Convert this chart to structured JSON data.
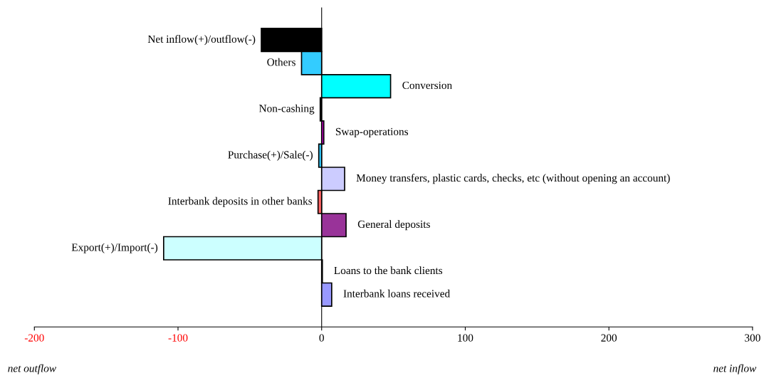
{
  "chart_data": {
    "type": "bar",
    "orientation": "horizontal",
    "categories": [
      "Net inflow(+)/outflow(-)",
      "Others",
      "Conversion",
      "Non-cashing",
      "Swap-operations",
      "Purchase(+)/Sale(-)",
      "Money transfers, plastic cards, checks, etc (without opening an account)",
      "Interbank deposits in other banks",
      "General deposits",
      "Export(+)/Import(-)",
      "Loans to the bank clients",
      "Interbank loans received"
    ],
    "values": [
      -42,
      -14,
      48,
      -1,
      1.5,
      -2,
      16,
      -2.5,
      17,
      -110,
      0.5,
      7
    ],
    "colors": [
      "#000000",
      "#33ccff",
      "#00ffff",
      "#000000",
      "#cc00cc",
      "#33ccff",
      "#ccccff",
      "#ff6666",
      "#993399",
      "#ccffff",
      "#000000",
      "#9999ff"
    ],
    "xlim": [
      -200,
      300
    ],
    "xticks": [
      -200,
      -100,
      0,
      100,
      200,
      300
    ],
    "grid": false,
    "legend": false,
    "annotations": [
      "net outflow",
      "net inflow"
    ]
  }
}
